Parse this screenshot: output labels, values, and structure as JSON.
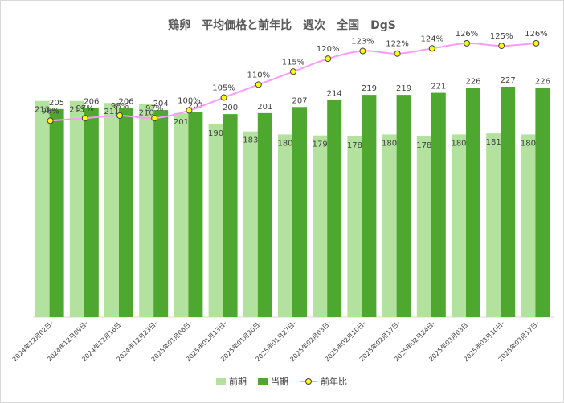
{
  "chart_data": {
    "type": "bar",
    "title": "鶏卵　平均価格と前年比　週次　全国　DgS",
    "categories": [
      "2024年12月02日-",
      "2024年12月09日-",
      "2024年12月16日-",
      "2024年12月23日-",
      "2025年01月06日-",
      "2025年01月13日-",
      "2025年01月20日-",
      "2025年01月27日-",
      "2025年02月03日-",
      "2025年02月10日-",
      "2025年02月17日-",
      "2025年02月24日-",
      "2025年03月03日-",
      "2025年03月10日-",
      "2025年03月17日-"
    ],
    "series": [
      {
        "name": "前期",
        "kind": "bar",
        "color": "#b3e29f",
        "values": [
          213,
          213,
          211,
          210,
          201,
          190,
          183,
          180,
          179,
          178,
          180,
          178,
          180,
          181,
          180
        ]
      },
      {
        "name": "当期",
        "kind": "bar",
        "color": "#4ea72e",
        "values": [
          205,
          206,
          206,
          204,
          202,
          200,
          201,
          207,
          214,
          219,
          219,
          221,
          226,
          227,
          226
        ]
      },
      {
        "name": "前年比",
        "kind": "line",
        "color": "#ff99ff",
        "marker_color": "#ffff00",
        "values": [
          96,
          97,
          98,
          97,
          100,
          105,
          110,
          115,
          120,
          123,
          122,
          124,
          126,
          125,
          126
        ],
        "value_suffix": "%"
      }
    ],
    "bar_ylim": [
      0,
      280
    ],
    "line_ylim": [
      20,
      130
    ],
    "legend_position": "bottom"
  }
}
